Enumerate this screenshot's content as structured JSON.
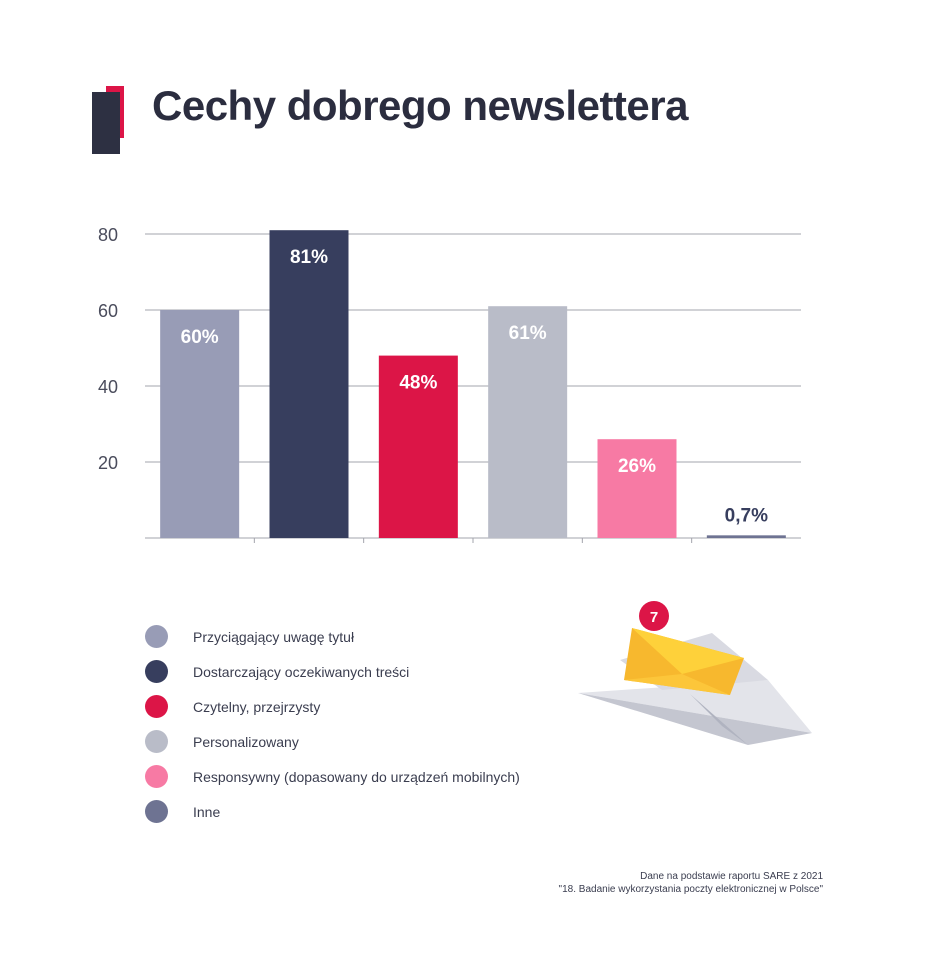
{
  "title": "Cechy dobrego newslettera",
  "chart_data": {
    "type": "bar",
    "categories": [
      "Przyciągający uwagę tytuł",
      "Dostarczający oczekiwanych treści",
      "Czytelny, przejrzysty",
      "Personalizowany",
      "Responsywny (dopasowany do urządzeń mobilnych)",
      "Inne"
    ],
    "values": [
      60,
      81,
      48,
      61,
      26,
      0.7
    ],
    "value_labels": [
      "60%",
      "81%",
      "48%",
      "61%",
      "26%",
      "0,7%"
    ],
    "colors": [
      "#989cb6",
      "#373e5e",
      "#dc1547",
      "#b9bcc8",
      "#f77aa4",
      "#6e7392"
    ],
    "label_colors": [
      "#ffffff",
      "#ffffff",
      "#ffffff",
      "#ffffff",
      "#ffffff",
      "#373e5e"
    ],
    "yticks": [
      "20",
      "40",
      "60",
      "80"
    ],
    "ylim": [
      0,
      80
    ],
    "grid": true,
    "legend": "bottom-left",
    "xlabel": "",
    "ylabel": ""
  },
  "legend_items": [
    {
      "label": "Przyciągający uwagę tytuł",
      "color": "#989cb6"
    },
    {
      "label": "Dostarczający oczekiwanych treści",
      "color": "#373e5e"
    },
    {
      "label": "Czytelny, przejrzysty",
      "color": "#dc1547"
    },
    {
      "label": "Personalizowany",
      "color": "#b9bcc8"
    },
    {
      "label": "Responsywny (dopasowany do urządzeń mobilnych)",
      "color": "#f77aa4"
    },
    {
      "label": "Inne",
      "color": "#6e7392"
    }
  ],
  "illustration": {
    "icon": "paper-plane-envelope-icon",
    "badge": "7"
  },
  "source": {
    "line1": "Dane na podstawie raportu SARE z 2021",
    "line2": "\"18. Badanie wykorzystania poczty elektronicznej w Polsce\""
  }
}
